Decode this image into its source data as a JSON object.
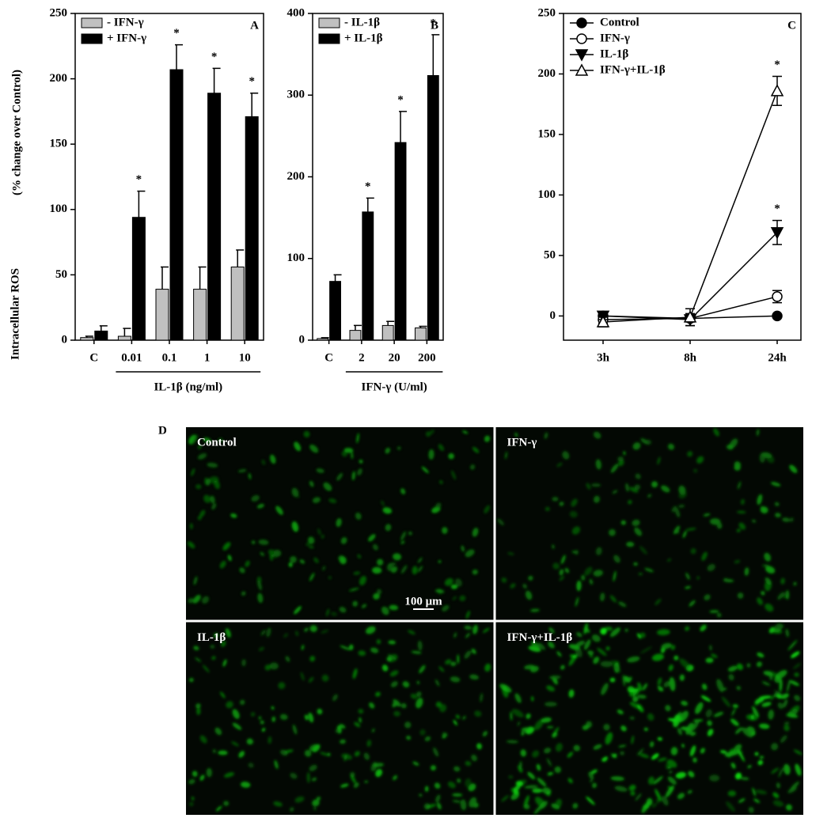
{
  "chart_data": [
    {
      "type": "bar",
      "panel": "A",
      "ylabel": "Intracellular ROS",
      "ylabel_note": "(% change over Control)",
      "xlabel": "IL-1β (ng/ml)",
      "categories": [
        "C",
        "0.01",
        "0.1",
        "1",
        "10"
      ],
      "series": [
        {
          "name": "- IFN-γ",
          "color": "#c0c0c0",
          "values": [
            2,
            3,
            39,
            39,
            56
          ],
          "errors": [
            1,
            6,
            17,
            17,
            13
          ]
        },
        {
          "name": "+ IFN-γ",
          "color": "#000000",
          "values": [
            7,
            94,
            207,
            189,
            171
          ],
          "errors": [
            4,
            20,
            19,
            19,
            18
          ]
        }
      ],
      "annotations": [
        {
          "text": "*",
          "series": 1,
          "category": 1
        },
        {
          "text": "*",
          "series": 1,
          "category": 2
        },
        {
          "text": "*",
          "series": 1,
          "category": 3
        },
        {
          "text": "*",
          "series": 1,
          "category": 4
        }
      ],
      "ylim": [
        0,
        250
      ],
      "yticks": [
        0,
        50,
        100,
        150,
        200,
        250
      ],
      "legend": "upper left"
    },
    {
      "type": "bar",
      "panel": "B",
      "xlabel": "IFN-γ (U/ml)",
      "categories": [
        "C",
        "2",
        "20",
        "200"
      ],
      "series": [
        {
          "name": "- IL-1β",
          "color": "#c0c0c0",
          "values": [
            2,
            12,
            18,
            15
          ],
          "errors": [
            1,
            6,
            5,
            2
          ]
        },
        {
          "name": "+ IL-1β",
          "color": "#000000",
          "values": [
            72,
            157,
            242,
            324
          ],
          "errors": [
            8,
            17,
            38,
            50
          ]
        }
      ],
      "annotations": [
        {
          "text": "*",
          "series": 1,
          "category": 1
        },
        {
          "text": "*",
          "series": 1,
          "category": 2
        },
        {
          "text": "*",
          "series": 1,
          "category": 3
        }
      ],
      "ylim": [
        0,
        400
      ],
      "yticks": [
        0,
        100,
        200,
        300,
        400
      ],
      "legend": "upper left"
    },
    {
      "type": "line",
      "panel": "C",
      "categories": [
        "3h",
        "8h",
        "24h"
      ],
      "series": [
        {
          "name": "Control",
          "color": "#000000",
          "marker": "circle",
          "fill": "#000000",
          "values": [
            0,
            -2,
            0
          ],
          "errors": [
            2,
            2,
            1
          ]
        },
        {
          "name": "IFN-γ",
          "color": "#000000",
          "marker": "circle",
          "fill": "#ffffff",
          "values": [
            -3,
            -2,
            16
          ],
          "errors": [
            3,
            3,
            5
          ]
        },
        {
          "name": "IL-1β",
          "color": "#000000",
          "marker": "triangle-down",
          "fill": "#000000",
          "values": [
            0,
            -3,
            69
          ],
          "errors": [
            3,
            5,
            10
          ]
        },
        {
          "name": "IFN-γ+IL-1β",
          "color": "#000000",
          "marker": "triangle-up",
          "fill": "#ffffff",
          "values": [
            -5,
            -1,
            186
          ],
          "errors": [
            4,
            7,
            12
          ]
        }
      ],
      "annotations": [
        {
          "text": "*",
          "series": 2,
          "category": 2
        },
        {
          "text": "*",
          "series": 3,
          "category": 2
        }
      ],
      "ylim": [
        -20,
        250
      ],
      "yticks": [
        0,
        50,
        100,
        150,
        200,
        250
      ],
      "legend": "upper left"
    }
  ],
  "micrographs": {
    "panel": "D",
    "scale_bar": "100 μm",
    "images": [
      {
        "label": "Control"
      },
      {
        "label": "IFN-γ"
      },
      {
        "label": "IL-1β"
      },
      {
        "label": "IFN-γ+IL-1β"
      }
    ]
  }
}
